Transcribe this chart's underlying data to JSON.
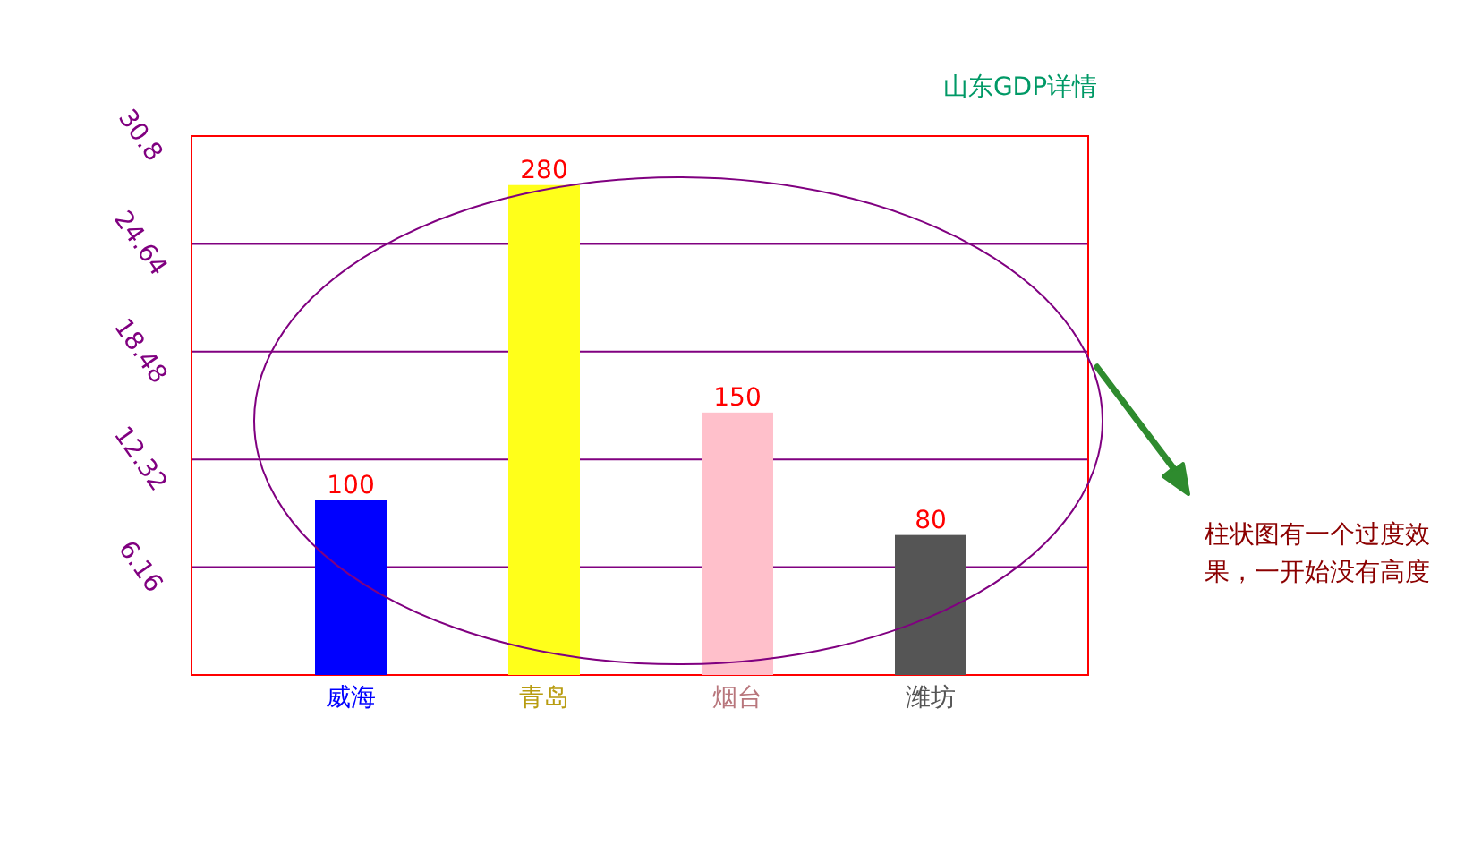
{
  "chart_data": {
    "type": "bar",
    "title": "山东GDP详情",
    "categories": [
      "威海",
      "青岛",
      "烟台",
      "潍坊"
    ],
    "series": [
      {
        "values": [
          100,
          280,
          150,
          80
        ],
        "axis": "y2"
      }
    ],
    "colors": [
      "#0000ff",
      "#ffff1a",
      "#ffc0cb",
      "#555555"
    ],
    "ylim": [
      0,
      30.8
    ],
    "yticks": [
      6.16,
      12.32,
      18.48,
      24.64,
      30.8
    ],
    "y2lim": [
      0,
      308
    ],
    "grid": "y",
    "data_labels": true,
    "annotations": [
      "柱状图有一个过度效果，一开始没有高度"
    ]
  }
}
